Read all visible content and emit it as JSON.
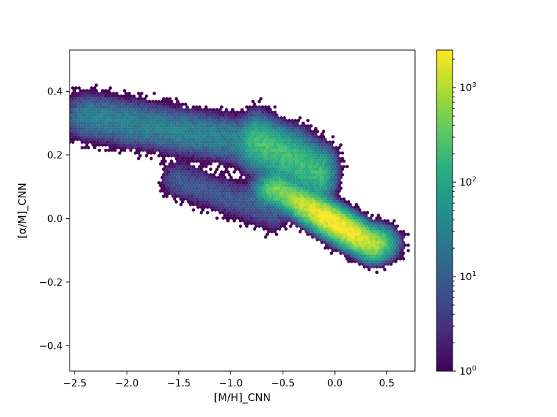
{
  "chart_data": {
    "type": "heatmap",
    "subtype": "hexbin",
    "xlabel": "[M/H]_CNN",
    "ylabel": "[α/M]_CNN",
    "xlim": [
      -2.55,
      0.77
    ],
    "ylim": [
      -0.48,
      0.53
    ],
    "xticks": [
      {
        "value": -2.5,
        "label": "−2.5"
      },
      {
        "value": -2.0,
        "label": "−2.0"
      },
      {
        "value": -1.5,
        "label": "−1.5"
      },
      {
        "value": -1.0,
        "label": "−1.0"
      },
      {
        "value": -0.5,
        "label": "−0.5"
      },
      {
        "value": 0.0,
        "label": "0.0"
      },
      {
        "value": 0.5,
        "label": "0.5"
      }
    ],
    "yticks": [
      {
        "value": -0.4,
        "label": "−0.4"
      },
      {
        "value": -0.2,
        "label": "−0.2"
      },
      {
        "value": 0.0,
        "label": "0.0"
      },
      {
        "value": 0.2,
        "label": "0.2"
      },
      {
        "value": 0.4,
        "label": "0.4"
      }
    ],
    "colorbar": {
      "scale": "log",
      "colormap": "viridis",
      "range": [
        1,
        2500
      ],
      "ticks": [
        {
          "value": 1,
          "base": "10",
          "exp": "0"
        },
        {
          "value": 10,
          "base": "10",
          "exp": "1"
        },
        {
          "value": 100,
          "base": "10",
          "exp": "2"
        },
        {
          "value": 1000,
          "base": "10",
          "exp": "3"
        }
      ]
    },
    "density_components": [
      {
        "name": "high-alpha sequence",
        "x0": -2.35,
        "y0": 0.32,
        "x1": -0.45,
        "y1": 0.22,
        "width_y": 0.045,
        "peak_count": 30
      },
      {
        "name": "upper ridge",
        "x0": -0.75,
        "y0": 0.24,
        "x1": -0.15,
        "y1": 0.14,
        "width_y": 0.05,
        "peak_count": 200
      },
      {
        "name": "low-alpha sequence",
        "x0": -0.55,
        "y0": 0.09,
        "x1": 0.35,
        "y1": -0.08,
        "width_y": 0.03,
        "peak_count": 2500
      },
      {
        "name": "metal-poor tail",
        "x0": -1.5,
        "y0": 0.12,
        "x1": -0.6,
        "y1": 0.02,
        "width_y": 0.04,
        "peak_count": 8
      }
    ]
  }
}
